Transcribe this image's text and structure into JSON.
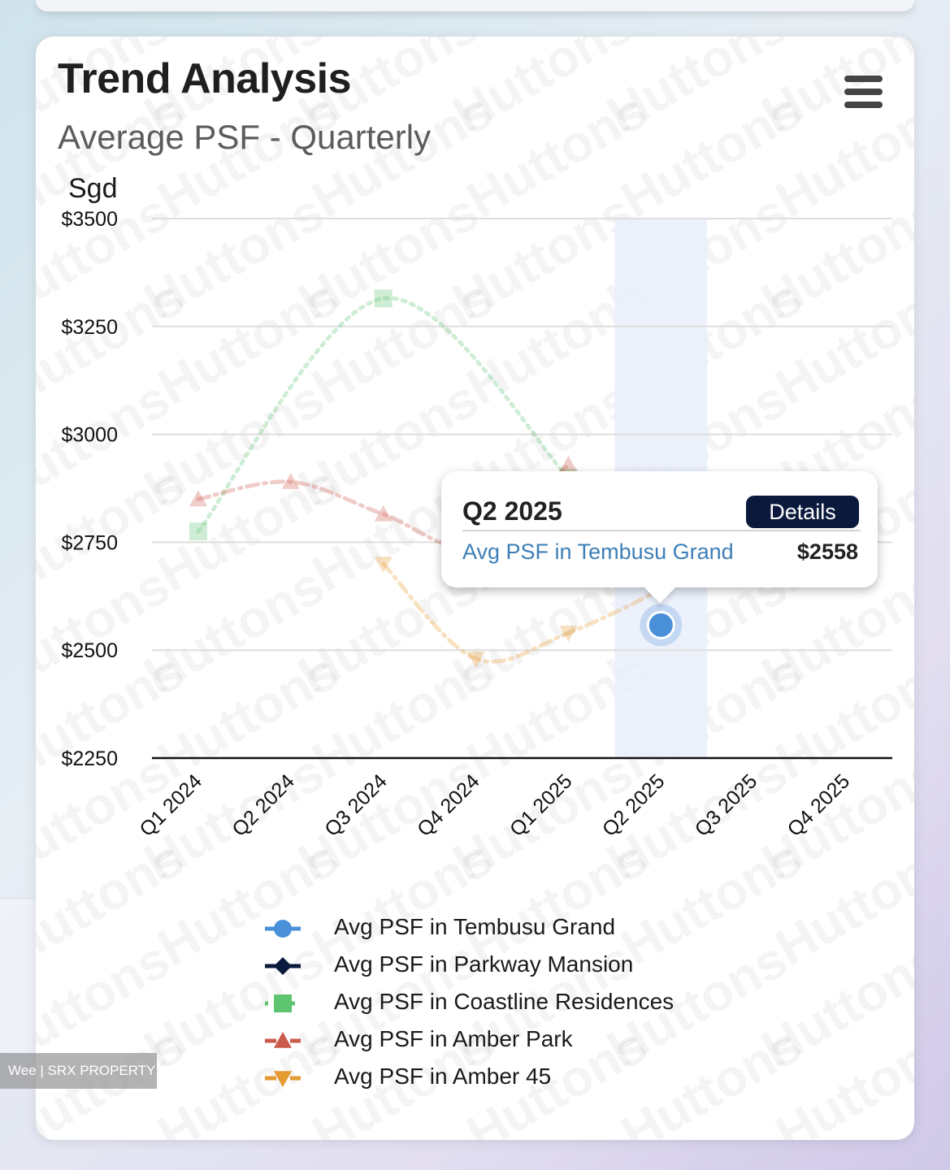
{
  "header": {
    "title": "Trend Analysis",
    "subtitle": "Average PSF - Quarterly"
  },
  "watermark": {
    "text": "Huttons"
  },
  "chart_data": {
    "type": "line",
    "ylabel": "Sgd",
    "ylim": [
      2250,
      3500
    ],
    "yticks": [
      "$2250",
      "$2500",
      "$2750",
      "$3000",
      "$3250",
      "$3500"
    ],
    "ytick_values": [
      2250,
      2500,
      2750,
      3000,
      3250,
      3500
    ],
    "categories": [
      "Q1 2024",
      "Q2 2024",
      "Q3 2024",
      "Q4 2024",
      "Q1 2025",
      "Q2 2025",
      "Q3 2025",
      "Q4 2025"
    ],
    "highlight_category": "Q2 2025",
    "grid": true,
    "legend_position": "bottom",
    "series": [
      {
        "name": "Avg PSF in Tembusu Grand",
        "color": "#4a90d9",
        "marker": "circle",
        "dash": "solid",
        "values": [
          null,
          null,
          null,
          null,
          null,
          2558,
          null,
          null
        ]
      },
      {
        "name": "Avg PSF in Parkway Mansion",
        "color": "#0b1a3c",
        "marker": "diamond",
        "dash": "solid",
        "values": [
          null,
          null,
          null,
          null,
          null,
          null,
          null,
          null
        ]
      },
      {
        "name": "Avg PSF in Coastline Residences",
        "color": "#5dc46f",
        "marker": "square",
        "dash": "dot",
        "values": [
          2775,
          null,
          3315,
          null,
          2900,
          null,
          null,
          null
        ]
      },
      {
        "name": "Avg PSF in Amber Park",
        "color": "#cc5b4c",
        "marker": "triangle",
        "dash": "dashdot",
        "values": [
          2850,
          2890,
          2815,
          2740,
          2930,
          null,
          null,
          null
        ]
      },
      {
        "name": "Avg PSF in Amber 45",
        "color": "#e59a32",
        "marker": "triangle-down",
        "dash": "dashdot",
        "values": [
          null,
          null,
          2700,
          2480,
          2540,
          2640,
          null,
          null
        ]
      }
    ]
  },
  "tooltip": {
    "period": "Q2 2025",
    "details_label": "Details",
    "series_label": "Avg PSF in Tembusu Grand",
    "value": "$2558"
  },
  "badge": {
    "text": "Wee | SRX PROPERTY"
  }
}
